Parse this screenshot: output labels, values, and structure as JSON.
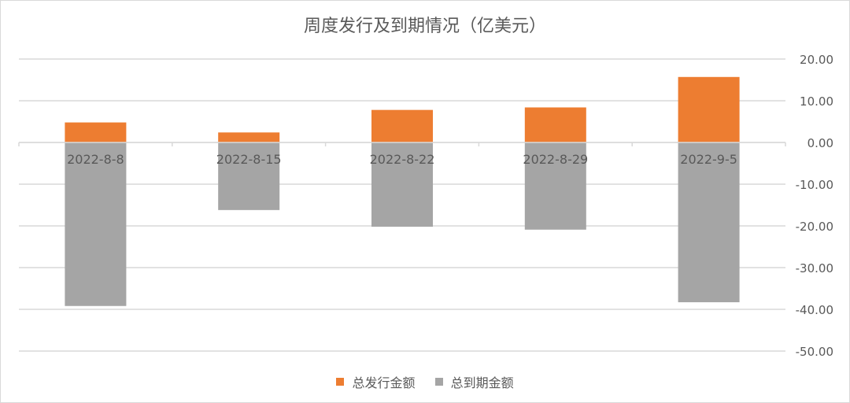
{
  "chart_data": {
    "type": "bar",
    "title": "周度发行及到期情况（亿美元）",
    "categories": [
      "2022-8-8",
      "2022-8-15",
      "2022-8-22",
      "2022-8-29",
      "2022-9-5"
    ],
    "series": [
      {
        "name": "总发行金额",
        "color": "#ED7D31",
        "values": [
          4.8,
          2.4,
          7.8,
          8.4,
          15.7
        ]
      },
      {
        "name": "总到期金额",
        "color": "#A5A5A5",
        "values": [
          -39.2,
          -16.2,
          -20.2,
          -20.9,
          -38.3
        ]
      }
    ],
    "y_ticks": [
      "20.00",
      "10.00",
      "0.00",
      "-10.00",
      "-20.00",
      "-30.00",
      "-40.00",
      "-50.00"
    ],
    "ylim": [
      -50,
      20
    ],
    "y_axis_side": "right",
    "grid": true,
    "legend_position": "bottom",
    "stacked": true
  }
}
